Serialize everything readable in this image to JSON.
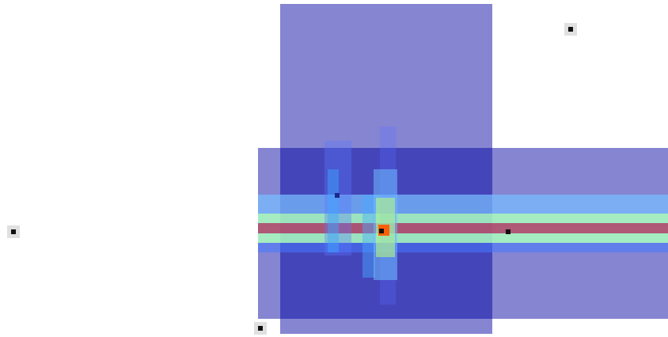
{
  "canvas": {
    "background": "#ffffff",
    "overlay_color": "#0000a0",
    "hot_band_color": "#b2566e",
    "highlight_color": "#aaffbe",
    "point_color": "#111111"
  },
  "markers": [
    {
      "id": "top-right-point"
    },
    {
      "id": "left-point"
    },
    {
      "id": "bottom-left-point"
    },
    {
      "id": "right-band-point"
    },
    {
      "id": "center-hot-point"
    },
    {
      "id": "upper-blue-point"
    }
  ]
}
